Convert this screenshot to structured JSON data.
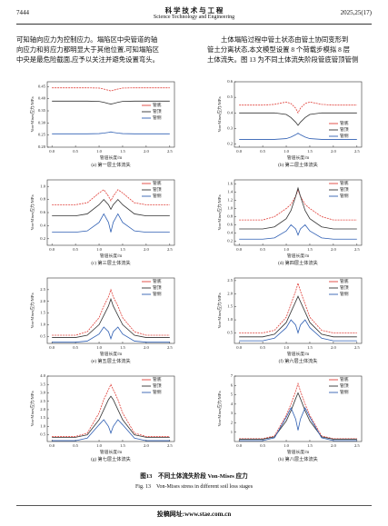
{
  "header": {
    "page": "7444",
    "journal_cn": "科 学 技 术 与 工 程",
    "journal_en": "Science Technology and Engineering",
    "issue": "2025,25(17)"
  },
  "left_paragraph": [
    "可知轴向应力为控制应力。塌陷区中央管道的轴",
    "向应力和剪应力都明显大于其他位置,可知塌陷区",
    "中央是最危险截面,应予以关注并避免设置弯头。"
  ],
  "right_paragraph": [
    "土体塌陷过程中管土状态由管土协同变形到",
    "管土分离状态,本文模型设置 8 个荷载步模拟 8 层",
    "土体流失。图 13 为不同土体流失阶段管底管顶管侧"
  ],
  "figure": {
    "caption_cn": "图13　不同土体流失阶段 Von-Mises 应力",
    "caption_en": "Fig. 13　Von-Mises stress in different soil loss stages"
  },
  "footer": "投稿网址:www.stae.com.cn",
  "chart_data": [
    {
      "type": "line",
      "caption": "(a) 第一层土体流失",
      "x_label": "管道长度/m",
      "y_label": "Von-Mises应力/MPa",
      "legend": "center right",
      "x": [
        0,
        0.5,
        0.75,
        1.0,
        1.1,
        1.2,
        1.25,
        1.3,
        1.4,
        1.5,
        1.75,
        2.0,
        2.5
      ],
      "xlim": [
        -0.1,
        2.6
      ],
      "xticks": [
        {
          "value": 0,
          "label": "0.0"
        },
        0.5,
        {
          "value": 1,
          "label": "1.0"
        },
        1.5,
        {
          "value": 2,
          "label": "2.0"
        },
        2.5
      ],
      "ylim": [
        0.2,
        0.47
      ],
      "yticks": [
        {
          "value": 0.2,
          "label": "0.20"
        },
        0.25,
        {
          "value": 0.3,
          "label": "0.30"
        },
        0.35,
        {
          "value": 0.4,
          "label": "0.40"
        },
        0.45
      ],
      "series": [
        {
          "name": "管底",
          "color": "#e0403a",
          "values": [
            0.445,
            0.445,
            0.445,
            0.444,
            0.44,
            0.435,
            0.432,
            0.435,
            0.44,
            0.444,
            0.445,
            0.445,
            0.445
          ]
        },
        {
          "name": "管顶",
          "color": "#333333",
          "values": [
            0.39,
            0.39,
            0.39,
            0.389,
            0.385,
            0.38,
            0.378,
            0.38,
            0.385,
            0.389,
            0.39,
            0.39,
            0.39
          ]
        },
        {
          "name": "管侧",
          "color": "#2f5fb3",
          "values": [
            0.255,
            0.255,
            0.255,
            0.256,
            0.258,
            0.261,
            0.263,
            0.261,
            0.258,
            0.256,
            0.255,
            0.255,
            0.255
          ]
        }
      ]
    },
    {
      "type": "line",
      "caption": "(b) 第二层土体流失",
      "x_label": "管道长度/m",
      "y_label": "Von-Mises应力/MPa",
      "legend": "lower right",
      "x": [
        0,
        0.5,
        0.75,
        1.0,
        1.1,
        1.2,
        1.25,
        1.3,
        1.4,
        1.5,
        1.75,
        2.0,
        2.5
      ],
      "xlim": [
        -0.1,
        2.6
      ],
      "xticks": [
        {
          "value": 0,
          "label": "0.0"
        },
        0.5,
        {
          "value": 1,
          "label": "1.0"
        },
        1.5,
        {
          "value": 2,
          "label": "2.0"
        },
        2.5
      ],
      "ylim": [
        0.18,
        0.6
      ],
      "yticks": [
        0.2,
        0.3,
        0.4,
        0.5,
        0.6
      ],
      "series": [
        {
          "name": "管底",
          "color": "#e0403a",
          "values": [
            0.45,
            0.45,
            0.455,
            0.47,
            0.46,
            0.43,
            0.4,
            0.43,
            0.46,
            0.47,
            0.455,
            0.45,
            0.45
          ]
        },
        {
          "name": "管顶",
          "color": "#333333",
          "values": [
            0.4,
            0.4,
            0.4,
            0.39,
            0.37,
            0.34,
            0.32,
            0.34,
            0.37,
            0.39,
            0.4,
            0.4,
            0.4
          ]
        },
        {
          "name": "管侧",
          "color": "#2f5fb3",
          "values": [
            0.23,
            0.23,
            0.23,
            0.235,
            0.245,
            0.26,
            0.27,
            0.26,
            0.245,
            0.235,
            0.23,
            0.23,
            0.23
          ]
        }
      ]
    },
    {
      "type": "line",
      "caption": "(c) 第三层土体流失",
      "x_label": "管道长度/m",
      "y_label": "Von-Mises应力/MPa",
      "legend": "upper right",
      "x": [
        0,
        0.5,
        0.75,
        1.0,
        1.1,
        1.2,
        1.25,
        1.3,
        1.4,
        1.5,
        1.75,
        2.0,
        2.5
      ],
      "xlim": [
        -0.1,
        2.6
      ],
      "xticks": [
        {
          "value": 0,
          "label": "0.0"
        },
        0.5,
        {
          "value": 1,
          "label": "1.0"
        },
        1.5,
        {
          "value": 2,
          "label": "2.0"
        },
        2.5
      ],
      "ylim": [
        0.1,
        1.1
      ],
      "yticks": [
        0.2,
        0.4,
        0.6,
        0.8,
        {
          "value": 1,
          "label": "1.0"
        }
      ],
      "series": [
        {
          "name": "管底",
          "color": "#e0403a",
          "values": [
            0.72,
            0.72,
            0.75,
            0.9,
            0.95,
            0.85,
            0.78,
            0.85,
            0.95,
            0.9,
            0.75,
            0.72,
            0.72
          ]
        },
        {
          "name": "管顶",
          "color": "#333333",
          "values": [
            0.55,
            0.55,
            0.58,
            0.72,
            0.8,
            0.72,
            0.65,
            0.72,
            0.8,
            0.72,
            0.58,
            0.55,
            0.55
          ]
        },
        {
          "name": "管侧",
          "color": "#2f5fb3",
          "values": [
            0.3,
            0.3,
            0.32,
            0.45,
            0.58,
            0.45,
            0.3,
            0.45,
            0.58,
            0.45,
            0.32,
            0.3,
            0.3
          ]
        }
      ]
    },
    {
      "type": "line",
      "caption": "(d) 第四层土体流失",
      "x_label": "管道长度/m",
      "y_label": "Von-Mises应力/MPa",
      "legend": "upper right",
      "x": [
        0,
        0.5,
        0.75,
        1.0,
        1.1,
        1.2,
        1.25,
        1.3,
        1.4,
        1.5,
        1.75,
        2.0,
        2.5
      ],
      "xlim": [
        -0.1,
        2.6
      ],
      "xticks": [
        {
          "value": 0,
          "label": "0.0"
        },
        0.5,
        {
          "value": 1,
          "label": "1.0"
        },
        1.5,
        {
          "value": 2,
          "label": "2.0"
        },
        2.5
      ],
      "ylim": [
        0.1,
        1.7
      ],
      "yticks": [
        0.2,
        0.4,
        0.6,
        0.8,
        {
          "value": 1,
          "label": "1.0"
        },
        1.2,
        1.4,
        1.6
      ],
      "series": [
        {
          "name": "管底",
          "color": "#e0403a",
          "values": [
            0.72,
            0.72,
            0.8,
            1.0,
            1.1,
            1.3,
            1.45,
            1.3,
            1.1,
            1.0,
            0.8,
            0.72,
            0.72
          ]
        },
        {
          "name": "管顶",
          "color": "#333333",
          "values": [
            0.5,
            0.5,
            0.55,
            0.75,
            0.95,
            1.3,
            1.5,
            1.3,
            0.95,
            0.75,
            0.55,
            0.5,
            0.5
          ]
        },
        {
          "name": "管侧",
          "color": "#2f5fb3",
          "values": [
            0.25,
            0.25,
            0.28,
            0.45,
            0.6,
            0.5,
            0.35,
            0.5,
            0.6,
            0.45,
            0.28,
            0.25,
            0.25
          ]
        }
      ]
    },
    {
      "type": "line",
      "caption": "(e) 第五层土体流失",
      "x_label": "管道长度/m",
      "y_label": "Von-Mises应力/MPa",
      "legend": "upper right",
      "x": [
        0,
        0.5,
        0.75,
        1.0,
        1.1,
        1.2,
        1.25,
        1.3,
        1.4,
        1.5,
        1.75,
        2.0,
        2.5
      ],
      "xlim": [
        -0.1,
        2.6
      ],
      "xticks": [
        {
          "value": 0,
          "label": "0.0"
        },
        0.5,
        {
          "value": 1,
          "label": "1.0"
        },
        1.5,
        {
          "value": 2,
          "label": "2.0"
        },
        2.5
      ],
      "ylim": [
        0.2,
        3.0
      ],
      "yticks": [
        0.5,
        {
          "value": 1,
          "label": "1.0"
        },
        1.5,
        {
          "value": 2,
          "label": "2.0"
        },
        2.5
      ],
      "series": [
        {
          "name": "管底",
          "color": "#e0403a",
          "values": [
            0.55,
            0.55,
            0.7,
            1.3,
            1.8,
            2.2,
            2.5,
            2.2,
            1.8,
            1.3,
            0.7,
            0.55,
            0.55
          ]
        },
        {
          "name": "管顶",
          "color": "#333333",
          "values": [
            0.45,
            0.45,
            0.55,
            1.0,
            1.4,
            1.8,
            2.1,
            1.8,
            1.4,
            1.0,
            0.55,
            0.45,
            0.45
          ]
        },
        {
          "name": "管侧",
          "color": "#2f5fb3",
          "values": [
            0.25,
            0.25,
            0.3,
            0.6,
            0.9,
            0.7,
            0.4,
            0.7,
            0.9,
            0.6,
            0.3,
            0.25,
            0.25
          ]
        }
      ]
    },
    {
      "type": "line",
      "caption": "(f) 第六层土体流失",
      "x_label": "管道长度/m",
      "y_label": "Von-Mises应力/MPa",
      "legend": "upper right",
      "x": [
        0,
        0.5,
        0.75,
        1.0,
        1.1,
        1.2,
        1.25,
        1.3,
        1.4,
        1.5,
        1.75,
        2.0,
        2.5
      ],
      "xlim": [
        -0.1,
        2.6
      ],
      "xticks": [
        {
          "value": 0,
          "label": "0.0"
        },
        0.5,
        {
          "value": 1,
          "label": "1.0"
        },
        1.5,
        {
          "value": 2,
          "label": "2.0"
        },
        2.5
      ],
      "ylim": [
        0.1,
        2.6
      ],
      "yticks": [
        0.5,
        {
          "value": 1,
          "label": "1.0"
        },
        1.5,
        {
          "value": 2,
          "label": "2.0"
        },
        2.5
      ],
      "series": [
        {
          "name": "管底",
          "color": "#e0403a",
          "values": [
            0.5,
            0.5,
            0.6,
            1.1,
            1.6,
            2.1,
            2.4,
            2.1,
            1.6,
            1.1,
            0.6,
            0.5,
            0.5
          ]
        },
        {
          "name": "管顶",
          "color": "#333333",
          "values": [
            0.35,
            0.35,
            0.45,
            0.9,
            1.3,
            1.7,
            1.9,
            1.7,
            1.3,
            0.9,
            0.45,
            0.35,
            0.35
          ]
        },
        {
          "name": "管侧",
          "color": "#2f5fb3",
          "values": [
            0.2,
            0.2,
            0.3,
            0.7,
            1.0,
            0.8,
            0.5,
            0.8,
            1.0,
            0.7,
            0.3,
            0.2,
            0.2
          ]
        }
      ]
    },
    {
      "type": "line",
      "caption": "(g) 第七层土体流失",
      "x_label": "管道长度/m",
      "y_label": "Von-Mises应力/MPa",
      "legend": "upper right",
      "x": [
        0,
        0.5,
        0.75,
        1.0,
        1.1,
        1.2,
        1.25,
        1.3,
        1.4,
        1.5,
        1.75,
        2.0,
        2.5
      ],
      "xlim": [
        -0.1,
        2.6
      ],
      "xticks": [
        {
          "value": 0,
          "label": "0.0"
        },
        0.5,
        {
          "value": 1,
          "label": "1.0"
        },
        1.5,
        {
          "value": 2,
          "label": "2.0"
        },
        2.5
      ],
      "ylim": [
        0.1,
        4.0
      ],
      "yticks": [
        0.5,
        {
          "value": 1,
          "label": "1.0"
        },
        1.5,
        {
          "value": 2,
          "label": "2.0"
        },
        2.5,
        {
          "value": 3,
          "label": "3.0"
        },
        3.5,
        {
          "value": 4,
          "label": "4.0"
        }
      ],
      "series": [
        {
          "name": "管底",
          "color": "#e0403a",
          "values": [
            0.4,
            0.4,
            0.6,
            1.8,
            2.6,
            3.2,
            3.5,
            3.2,
            2.6,
            1.8,
            0.6,
            0.4,
            0.4
          ]
        },
        {
          "name": "管顶",
          "color": "#333333",
          "values": [
            0.35,
            0.35,
            0.5,
            1.4,
            2.0,
            2.6,
            2.8,
            2.6,
            2.0,
            1.4,
            0.5,
            0.35,
            0.35
          ]
        },
        {
          "name": "管侧",
          "color": "#2f5fb3",
          "values": [
            0.15,
            0.15,
            0.3,
            1.1,
            1.4,
            1.0,
            0.6,
            1.0,
            1.4,
            1.1,
            0.3,
            0.15,
            0.15
          ]
        }
      ]
    },
    {
      "type": "line",
      "caption": "(h) 第八层土体流失",
      "x_label": "管道长度/m",
      "y_label": "Von-Mises应力/MPa",
      "legend": "upper right",
      "x": [
        0,
        0.5,
        0.75,
        1.0,
        1.1,
        1.2,
        1.25,
        1.3,
        1.4,
        1.5,
        1.75,
        2.0,
        2.5
      ],
      "xlim": [
        -0.1,
        2.6
      ],
      "xticks": [
        {
          "value": 0,
          "label": "0.0"
        },
        0.5,
        {
          "value": 1,
          "label": "1.0"
        },
        1.5,
        {
          "value": 2,
          "label": "2.0"
        },
        2.5
      ],
      "ylim": [
        0,
        7
      ],
      "yticks": [
        1,
        2,
        3,
        4,
        5,
        6,
        7
      ],
      "series": [
        {
          "name": "管底",
          "color": "#e0403a",
          "values": [
            0.3,
            0.3,
            0.6,
            2.8,
            4.0,
            5.4,
            6.2,
            5.4,
            4.0,
            2.8,
            0.6,
            0.3,
            0.3
          ]
        },
        {
          "name": "管顶",
          "color": "#333333",
          "values": [
            0.25,
            0.25,
            0.5,
            2.2,
            3.3,
            4.6,
            5.2,
            4.6,
            3.3,
            2.2,
            0.5,
            0.25,
            0.25
          ]
        },
        {
          "name": "管侧",
          "color": "#2f5fb3",
          "values": [
            0.1,
            0.1,
            0.4,
            2.6,
            3.6,
            2.4,
            1.2,
            2.4,
            3.6,
            2.6,
            0.4,
            0.1,
            0.1
          ]
        }
      ]
    }
  ]
}
